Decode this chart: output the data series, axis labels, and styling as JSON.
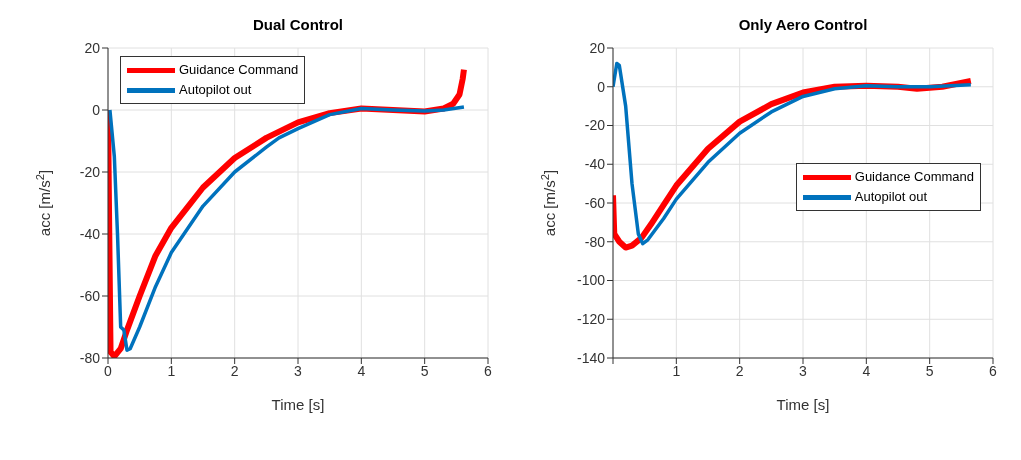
{
  "chart_data": [
    {
      "type": "line",
      "title": "Dual Control",
      "xlabel": "Time [s]",
      "ylabel": "acc [m/s$^{2}$]",
      "xlim": [
        0,
        6
      ],
      "xticks": [
        0,
        1,
        2,
        3,
        4,
        5,
        6
      ],
      "ylim": [
        -80,
        20
      ],
      "yticks": [
        -80,
        -60,
        -40,
        -20,
        0,
        20
      ],
      "grid": true,
      "legend": "top left",
      "series": [
        {
          "name": "Guidance Command",
          "color": "#ff0000",
          "x": [
            0,
            0.02,
            0.04,
            0.1,
            0.2,
            0.3,
            0.5,
            0.75,
            1.0,
            1.5,
            2.0,
            2.5,
            3.0,
            3.5,
            4.0,
            4.5,
            5.0,
            5.3,
            5.45,
            5.55,
            5.6,
            5.62
          ],
          "values": [
            0,
            -40,
            -78,
            -79.5,
            -77,
            -71,
            -60,
            -47,
            -38,
            -25,
            -15.5,
            -9,
            -4,
            -1,
            0.5,
            0,
            -0.5,
            0.5,
            2,
            5,
            10,
            13
          ]
        },
        {
          "name": "Autopilot out",
          "color": "#0072bd",
          "x": [
            0.03,
            0.1,
            0.15,
            0.2,
            0.25,
            0.3,
            0.35,
            0.5,
            0.75,
            1.0,
            1.5,
            2.0,
            2.5,
            2.7,
            3.0,
            3.5,
            4.0,
            4.5,
            5.0,
            5.3,
            5.62
          ],
          "values": [
            0,
            -15,
            -40,
            -70,
            -71,
            -77.5,
            -77,
            -70,
            -57,
            -46,
            -31,
            -20,
            -12,
            -9,
            -6,
            -1.5,
            0.5,
            0,
            -0.3,
            0,
            1
          ]
        }
      ]
    },
    {
      "type": "line",
      "title": "Only Aero Control",
      "xlabel": "Time [s]",
      "ylabel": "acc [m/s$^{2}$]",
      "xlim": [
        0,
        6
      ],
      "xticks": [
        {
          "value": 0,
          "label": null
        },
        1,
        2,
        3,
        4,
        5,
        6
      ],
      "ylim": [
        -140,
        20
      ],
      "yticks": [
        -140,
        -120,
        -100,
        -80,
        -60,
        -40,
        -20,
        0,
        20
      ],
      "grid": true,
      "legend": "right",
      "series": [
        {
          "name": "Guidance Command",
          "color": "#ff0000",
          "x": [
            0,
            0.02,
            0.1,
            0.2,
            0.3,
            0.45,
            0.6,
            0.8,
            1.0,
            1.5,
            2.0,
            2.5,
            3.0,
            3.5,
            4.0,
            4.5,
            4.8,
            5.2,
            5.65
          ],
          "values": [
            -56,
            -76,
            -80,
            -83,
            -82,
            -78,
            -71,
            -61,
            -51,
            -32,
            -18,
            -9,
            -3,
            0,
            0.5,
            0,
            -1,
            0,
            3
          ]
        },
        {
          "name": "Autopilot out",
          "color": "#0072bd",
          "x": [
            0,
            0.06,
            0.1,
            0.2,
            0.3,
            0.4,
            0.47,
            0.55,
            0.8,
            1.0,
            1.5,
            2.0,
            2.5,
            3.0,
            3.5,
            4.0,
            4.5,
            5.0,
            5.65
          ],
          "values": [
            0,
            12,
            11,
            -10,
            -50,
            -76,
            -81,
            -79,
            -68,
            -58,
            -39,
            -24,
            -13,
            -5,
            -1,
            0.5,
            0,
            0,
            1
          ]
        }
      ]
    }
  ]
}
